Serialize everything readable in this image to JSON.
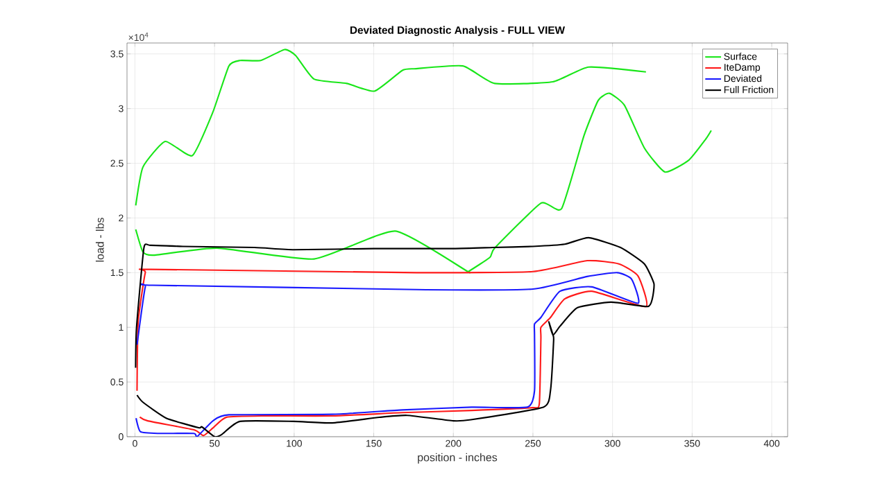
{
  "chart_data": {
    "type": "line",
    "title": "Deviated Diagnostic Analysis - FULL VIEW",
    "xlabel": "position - inches",
    "ylabel": "load - lbs",
    "annotations": [
      "×10$^{4}$"
    ],
    "xlim": [
      -5,
      410
    ],
    "ylim": [
      0,
      3.6
    ],
    "xticks": [
      0,
      50,
      100,
      150,
      200,
      250,
      300,
      350,
      400
    ],
    "yticks": [
      0,
      0.5,
      1,
      1.5,
      2,
      2.5,
      3,
      3.5
    ],
    "grid": true,
    "legend": "top right",
    "line_style": "solid",
    "marker": "none",
    "series": [
      {
        "name": "Surface",
        "color": "#19e619",
        "x": [
          0.5,
          5,
          19,
          36,
          49,
          59,
          66,
          79,
          94,
          101,
          112.5,
          133,
          150.5,
          168,
          176.5,
          206,
          226,
          262.5,
          285,
          321,
          340,
          362,
          358.5,
          348,
          333,
          320,
          307.5,
          298,
          291,
          282,
          268,
          255,
          226,
          223,
          210,
          208.5,
          163.5,
          112.5,
          51.5,
          12,
          5,
          0.5
        ],
        "values": [
          2.115,
          2.465,
          2.7,
          2.57,
          2.97,
          3.39,
          3.44,
          3.44,
          3.54,
          3.485,
          3.27,
          3.23,
          3.16,
          3.35,
          3.365,
          3.39,
          3.23,
          3.245,
          3.38,
          3.335,
          null,
          2.8,
          2.72,
          2.53,
          2.42,
          2.64,
          3.03,
          3.14,
          3.075,
          2.75,
          2.085,
          2.135,
          1.725,
          1.64,
          1.515,
          1.515,
          1.88,
          1.625,
          1.725,
          1.66,
          1.69,
          1.895
        ]
      },
      {
        "name": "IteDamp",
        "color": "#ff1a1a",
        "x": [
          1.3,
          2,
          6.5,
          10,
          177,
          250,
          284,
          304,
          316,
          321,
          287,
          270,
          261,
          255,
          255,
          254,
          249.5,
          211.5,
          168,
          124,
          81,
          57.5,
          49,
          43,
          37,
          8,
          3
        ],
        "values": [
          0.42,
          1.05,
          1.5,
          1.53,
          1.5,
          1.51,
          1.61,
          1.58,
          1.47,
          1.19,
          1.33,
          1.26,
          1.09,
          1.0,
          0.9,
          0.3,
          0.265,
          0.24,
          0.22,
          0.19,
          0.19,
          0.178,
          0.08,
          0.01,
          0.063,
          0.145,
          0.18
        ]
      },
      {
        "name": "Deviated",
        "color": "#1a1aff",
        "x": [
          1.3,
          6.5,
          11,
          177,
          250,
          284,
          303,
          312,
          316,
          287,
          267,
          255,
          251,
          251,
          251,
          246.5,
          211.5,
          168,
          124,
          59,
          49,
          39,
          37,
          15,
          3.5,
          0.7
        ],
        "values": [
          0.84,
          1.37,
          1.385,
          1.345,
          1.35,
          1.465,
          1.5,
          1.44,
          1.22,
          1.37,
          1.33,
          1.09,
          1.03,
          0.93,
          0.42,
          0.27,
          0.27,
          0.245,
          0.205,
          0.2,
          0.145,
          0,
          0.03,
          0.03,
          0.045,
          0.17
        ]
      },
      {
        "name": "Full Friction",
        "color": "#000000",
        "x": [
          0.4,
          1,
          5.6,
          9.6,
          30,
          75,
          100,
          150,
          200,
          225,
          250,
          270,
          285,
          305,
          320,
          326,
          325,
          322,
          299,
          278,
          267,
          262.6,
          260,
          262.6,
          263,
          261,
          256.5,
          211,
          200,
          171,
          153.5,
          124,
          99.5,
          66,
          54.5,
          50,
          42,
          40,
          19.6,
          5,
          1.3
        ],
        "values": [
          0.63,
          1.0,
          1.725,
          1.75,
          1.74,
          1.73,
          1.71,
          1.72,
          1.72,
          1.73,
          1.74,
          1.76,
          1.82,
          1.73,
          1.58,
          1.4,
          1.263,
          1.19,
          1.23,
          1.18,
          1.01,
          0.93,
          1.05,
          0.93,
          0.88,
          0.42,
          0.27,
          0.155,
          0.145,
          0.195,
          0.177,
          0.126,
          0.14,
          0.14,
          0.02,
          0,
          0.09,
          0.082,
          0.17,
          0.315,
          0.38
        ]
      }
    ]
  }
}
